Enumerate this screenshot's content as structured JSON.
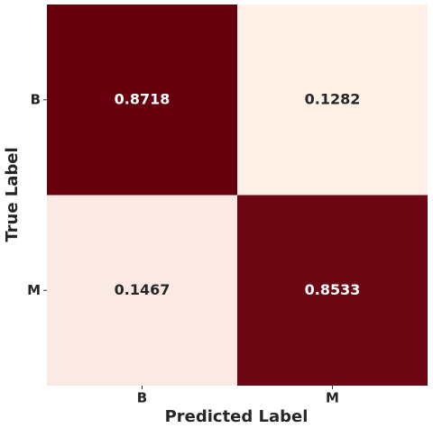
{
  "chart_data": {
    "type": "heatmap",
    "x_label": "Predicted Label",
    "y_label": "True Label",
    "x_categories": [
      "B",
      "M"
    ],
    "y_categories": [
      "B",
      "M"
    ],
    "values": [
      [
        0.8718,
        0.1282
      ],
      [
        0.1467,
        0.8533
      ]
    ],
    "colors": [
      "#fff0e8",
      "#67000d"
    ]
  }
}
